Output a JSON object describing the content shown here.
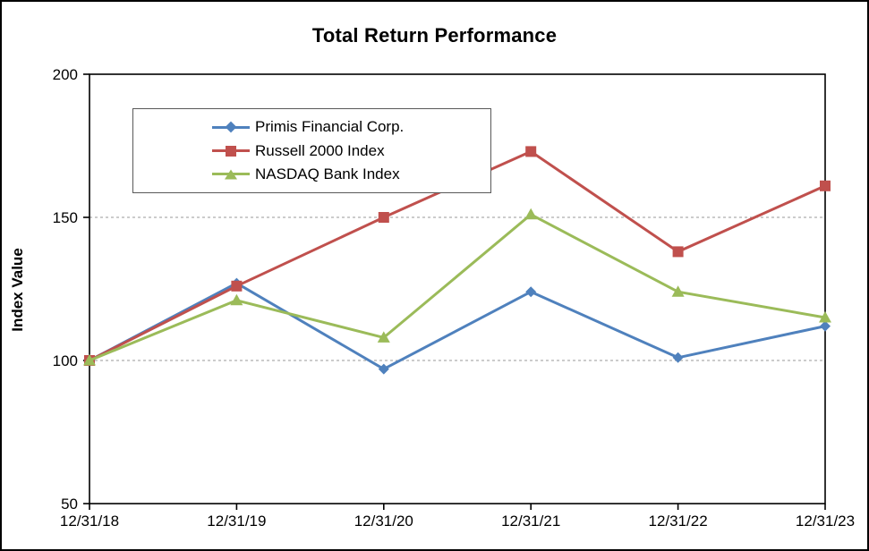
{
  "chart_data": {
    "type": "line",
    "title": "Total Return Performance",
    "xlabel": "",
    "ylabel": "Index Value",
    "categories": [
      "12/31/18",
      "12/31/19",
      "12/31/20",
      "12/31/21",
      "12/31/22",
      "12/31/23"
    ],
    "series": [
      {
        "name": "Primis Financial Corp.",
        "color": "#4F81BD",
        "marker": "diamond",
        "values": [
          100,
          127,
          97,
          124,
          101,
          112
        ]
      },
      {
        "name": "Russell 2000 Index",
        "color": "#C0504D",
        "marker": "square",
        "values": [
          100,
          126,
          150,
          173,
          138,
          161
        ]
      },
      {
        "name": "NASDAQ Bank Index",
        "color": "#9BBB59",
        "marker": "triangle",
        "values": [
          100,
          121,
          108,
          151,
          124,
          115
        ]
      }
    ],
    "ylim": [
      50,
      200
    ],
    "y_ticks": [
      50,
      100,
      150,
      200
    ],
    "grid": "horizontal dashed lines at interior y ticks only",
    "legend_position": "upper-left inside plot",
    "axis_color": "#000000",
    "gridline_color": "#999999",
    "background_color": "#FFFFFF"
  }
}
